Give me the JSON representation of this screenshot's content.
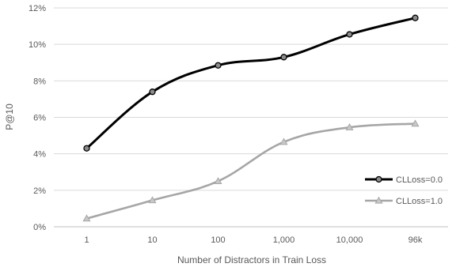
{
  "chart_data": {
    "type": "line",
    "title": "",
    "xlabel": "Number of Distractors  in Train Loss",
    "ylabel": "P@10",
    "categories": [
      "1",
      "10",
      "100",
      "1,000",
      "10,000",
      "96k"
    ],
    "y_ticks": [
      "0%",
      "2%",
      "4%",
      "6%",
      "8%",
      "10%",
      "12%"
    ],
    "ylim": [
      0,
      12
    ],
    "grid": "horizontal",
    "legend_position": "right",
    "series": [
      {
        "name": "CLLoss=0.0",
        "values": [
          4.3,
          7.4,
          8.85,
          9.3,
          10.55,
          11.45
        ],
        "color": "#000000",
        "marker": "circle"
      },
      {
        "name": "CLLoss=1.0",
        "values": [
          0.45,
          1.45,
          2.5,
          4.65,
          5.45,
          5.65
        ],
        "color": "#a6a6a6",
        "marker": "triangle"
      }
    ]
  }
}
